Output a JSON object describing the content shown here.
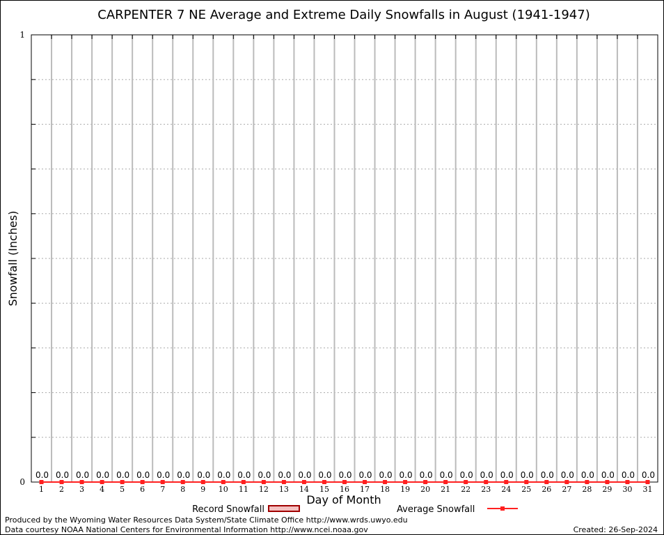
{
  "chart_data": {
    "type": "bar",
    "title": "CARPENTER 7 NE Average and Extreme Daily Snowfalls in August (1941-1947)",
    "xlabel": "Day of Month",
    "ylabel": "Snowfall (Inches)",
    "ylim": [
      0,
      1
    ],
    "y_ticks": [
      "0",
      "1"
    ],
    "grid": true,
    "categories": [
      "1",
      "2",
      "3",
      "4",
      "5",
      "6",
      "7",
      "8",
      "9",
      "10",
      "11",
      "12",
      "13",
      "14",
      "15",
      "16",
      "17",
      "18",
      "19",
      "20",
      "21",
      "22",
      "23",
      "24",
      "25",
      "26",
      "27",
      "28",
      "29",
      "30",
      "31"
    ],
    "series": [
      {
        "name": "Record Snowfall",
        "type": "bar",
        "color": "#a00000",
        "values": [
          0,
          0,
          0,
          0,
          0,
          0,
          0,
          0,
          0,
          0,
          0,
          0,
          0,
          0,
          0,
          0,
          0,
          0,
          0,
          0,
          0,
          0,
          0,
          0,
          0,
          0,
          0,
          0,
          0,
          0,
          0
        ]
      },
      {
        "name": "Average Snowfall",
        "type": "line",
        "color": "#ff2020",
        "values": [
          0,
          0,
          0,
          0,
          0,
          0,
          0,
          0,
          0,
          0,
          0,
          0,
          0,
          0,
          0,
          0,
          0,
          0,
          0,
          0,
          0,
          0,
          0,
          0,
          0,
          0,
          0,
          0,
          0,
          0,
          0
        ]
      }
    ],
    "data_labels": [
      "0.0",
      "0.0",
      "0.0",
      "0.0",
      "0.0",
      "0.0",
      "0.0",
      "0.0",
      "0.0",
      "0.0",
      "0.0",
      "0.0",
      "0.0",
      "0.0",
      "0.0",
      "0.0",
      "0.0",
      "0.0",
      "0.0",
      "0.0",
      "0.0",
      "0.0",
      "0.0",
      "0.0",
      "0.0",
      "0.0",
      "0.0",
      "0.0",
      "0.0",
      "0.0",
      "0.0"
    ],
    "legend_placement": "bottom"
  },
  "footer": {
    "produced_by": "Produced by the Wyoming Water Resources Data System/State Climate Office http://www.wrds.uwyo.edu",
    "courtesy": "Data courtesy NOAA National Centers for Environmental Information http://www.ncei.noaa.gov",
    "created": "Created: 26-Sep-2024"
  }
}
